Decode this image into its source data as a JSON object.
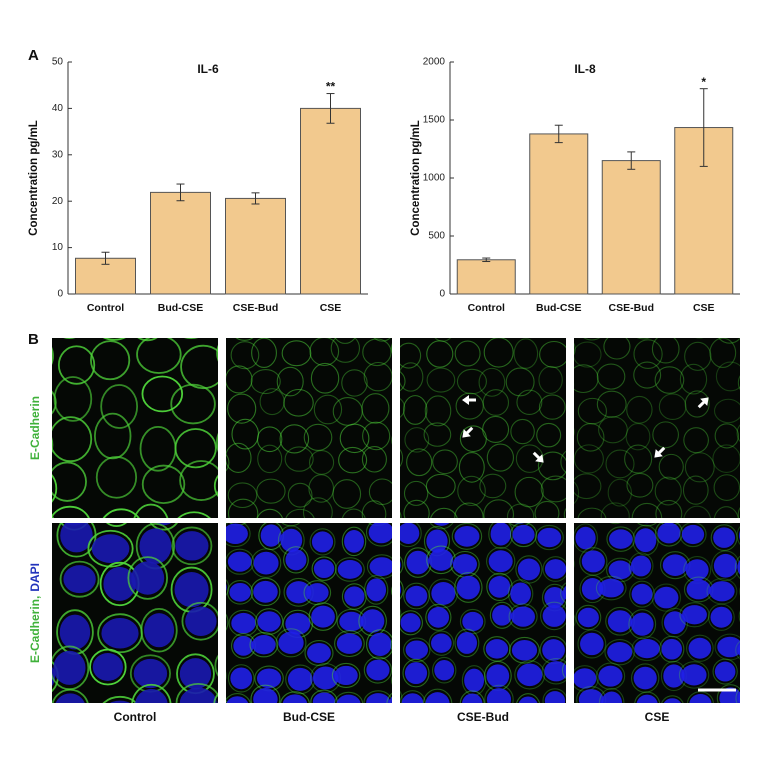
{
  "panel_a_label": "A",
  "chart_data": [
    {
      "type": "bar",
      "title": "IL-6",
      "y_label": "Concentration pg/mL",
      "categories": [
        "Control",
        "Bud-CSE",
        "CSE-Bud",
        "CSE"
      ],
      "values": [
        7.7,
        21.9,
        20.6,
        40
      ],
      "errors": [
        1.3,
        1.8,
        1.2,
        3.2
      ],
      "color": "#f2c98e",
      "ylim": [
        0,
        50
      ],
      "yticks": [
        0,
        10,
        20,
        30,
        40,
        50
      ],
      "annotations": [
        {
          "text": "**",
          "category": "CSE"
        }
      ]
    },
    {
      "type": "bar",
      "title": "IL-8",
      "y_label": "Concentration pg/mL",
      "categories": [
        "Control",
        "Bud-CSE",
        "CSE-Bud",
        "CSE"
      ],
      "values": [
        295,
        1380,
        1150,
        1435
      ],
      "errors": [
        15,
        75,
        75,
        335
      ],
      "color": "#f2c98e",
      "ylim": [
        0,
        2000
      ],
      "yticks": [
        0,
        500,
        1000,
        1500,
        2000
      ],
      "annotations": [
        {
          "text": "*",
          "category": "CSE"
        }
      ]
    }
  ],
  "panel_b": {
    "label": "B",
    "row_labels": [
      [
        "E-Cadherin"
      ],
      [
        "E-Cadherin,",
        "DAPI"
      ]
    ],
    "columns": [
      "Control",
      "Bud-CSE",
      "CSE-Bud",
      "CSE"
    ]
  }
}
